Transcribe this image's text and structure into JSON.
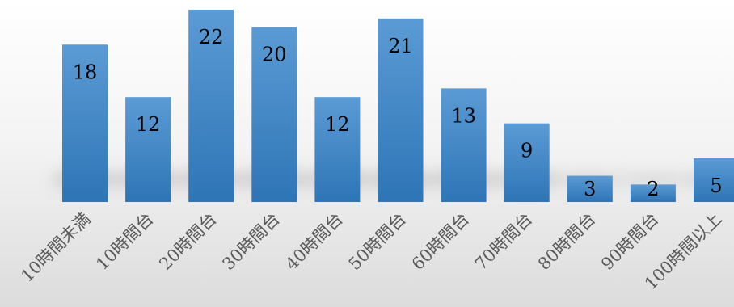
{
  "chart_data": {
    "type": "bar",
    "categories": [
      "10時間未満",
      "10時間台",
      "20時間台",
      "30時間台",
      "40時間台",
      "50時間台",
      "60時間台",
      "70時間台",
      "80時間台",
      "90時間台",
      "100時間以上"
    ],
    "values": [
      18,
      12,
      22,
      20,
      12,
      21,
      13,
      9,
      3,
      2,
      5
    ],
    "data_labels": [
      "18",
      "12",
      "22",
      "20",
      "12",
      "21",
      "13",
      "9",
      "3",
      "2",
      "5"
    ],
    "title": "",
    "xlabel": "",
    "ylabel": "",
    "ylim": [
      0,
      22
    ],
    "grid": false,
    "legend": "none",
    "colors": {
      "bar_top": "#5b9bd5",
      "bar_bottom": "#2e75b6",
      "shadow": "#8f8f8f"
    }
  }
}
